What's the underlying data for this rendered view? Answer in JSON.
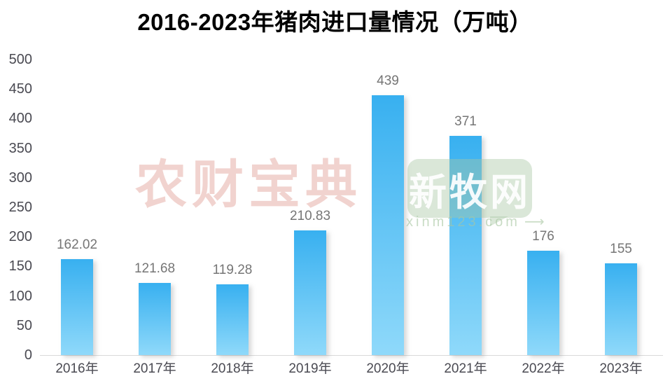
{
  "page": {
    "background": "#FFFFFF"
  },
  "chart_data": {
    "type": "bar",
    "title": "2016-2023年猪肉进口量情况（万吨）",
    "categories": [
      "2016年",
      "2017年",
      "2018年",
      "2019年",
      "2020年",
      "2021年",
      "2022年",
      "2023年"
    ],
    "values": [
      162.02,
      121.68,
      119.28,
      210.83,
      439,
      371,
      176,
      155
    ],
    "data_labels": [
      "162.02",
      "121.68",
      "119.28",
      "210.83",
      "439",
      "371",
      "176",
      "155"
    ],
    "xlabel": "",
    "ylabel": "",
    "ylim": [
      0,
      500
    ],
    "yticks": [
      0,
      50,
      100,
      150,
      200,
      250,
      300,
      350,
      400,
      450,
      500
    ],
    "grid": false,
    "legend_position": "none",
    "bar_gradient_top": "#38B0F0",
    "bar_gradient_bottom": "#8FD9FA",
    "axis_label_color": "#4A4A52",
    "data_label_color": "#757575",
    "baseline_color": "#D9D9D9"
  },
  "watermarks": {
    "brand_left": {
      "text": "农财宝典",
      "color": "#DE968C"
    },
    "brand_right": {
      "text": "新牧网",
      "bubble_color": "#A8C6A2",
      "text_color": "#FFFFFF",
      "caption": "xinm123.com",
      "arrow": "⟶"
    }
  }
}
